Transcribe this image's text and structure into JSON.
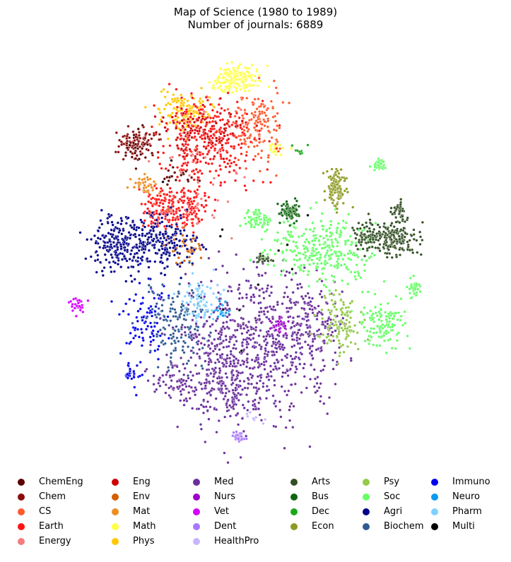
{
  "chart_data": {
    "type": "scatter",
    "title": "Map of Science (1980 to 1989)",
    "subtitle": "Number of journals: 6889",
    "axes_visible": false,
    "legend_placement": "bottom",
    "fields": [
      {
        "name": "ChemEng",
        "color": "#5c0000"
      },
      {
        "name": "Chem",
        "color": "#8b0d0d"
      },
      {
        "name": "CS",
        "color": "#ff5a2e"
      },
      {
        "name": "Earth",
        "color": "#ff1414"
      },
      {
        "name": "Energy",
        "color": "#f47d7d"
      },
      {
        "name": "Eng",
        "color": "#cc0000"
      },
      {
        "name": "Env",
        "color": "#d35f00"
      },
      {
        "name": "Mat",
        "color": "#ee8d22"
      },
      {
        "name": "Math",
        "color": "#ffff44"
      },
      {
        "name": "Phys",
        "color": "#ffc800"
      },
      {
        "name": "Med",
        "color": "#6a2f9b"
      },
      {
        "name": "Nurs",
        "color": "#9d00c8"
      },
      {
        "name": "Vet",
        "color": "#d400ff"
      },
      {
        "name": "Dent",
        "color": "#aa77ff"
      },
      {
        "name": "HealthPro",
        "color": "#c9b5ff"
      },
      {
        "name": "Arts",
        "color": "#334f25"
      },
      {
        "name": "Bus",
        "color": "#116611"
      },
      {
        "name": "Dec",
        "color": "#1aa81a"
      },
      {
        "name": "Econ",
        "color": "#8e9a22"
      },
      {
        "name": "Psy",
        "color": "#94c94a"
      },
      {
        "name": "Soc",
        "color": "#66ff66"
      },
      {
        "name": "Agri",
        "color": "#000088"
      },
      {
        "name": "Biochem",
        "color": "#2f5a92"
      },
      {
        "name": "Immuno",
        "color": "#0000ee"
      },
      {
        "name": "Neuro",
        "color": "#0a9af0"
      },
      {
        "name": "Pharm",
        "color": "#7fd1ff"
      },
      {
        "name": "Multi",
        "color": "#000000"
      }
    ],
    "legend_columns": [
      [
        "ChemEng",
        "Chem",
        "CS",
        "Earth",
        "Energy"
      ],
      [
        "Eng",
        "Env",
        "Mat",
        "Math",
        "Phys"
      ],
      [
        "Med",
        "Nurs",
        "Vet",
        "Dent",
        "HealthPro"
      ],
      [
        "Arts",
        "Bus",
        "Dec",
        "Econ"
      ],
      [
        "Psy",
        "Soc",
        "Agri",
        "Biochem"
      ],
      [
        "Immuno",
        "Neuro",
        "Pharm",
        "Multi"
      ]
    ],
    "xlim": [
      0,
      100
    ],
    "ylim": [
      0,
      100
    ],
    "clusters": [
      {
        "field": "Math",
        "x": 43,
        "y": 94,
        "sx": 3.2,
        "sy": 2.2,
        "n": 180
      },
      {
        "field": "Math",
        "x": 56,
        "y": 76,
        "sx": 1.5,
        "sy": 0.8,
        "n": 25
      },
      {
        "field": "Phys",
        "x": 28,
        "y": 86,
        "sx": 4.5,
        "sy": 3,
        "n": 150
      },
      {
        "field": "CS",
        "x": 49,
        "y": 82,
        "sx": 4,
        "sy": 5,
        "n": 150
      },
      {
        "field": "Earth",
        "x": 34,
        "y": 78,
        "sx": 8,
        "sy": 6.5,
        "n": 320
      },
      {
        "field": "Earth",
        "x": 21,
        "y": 61,
        "sx": 3.5,
        "sy": 3.5,
        "n": 160
      },
      {
        "field": "Earth",
        "x": 29,
        "y": 61,
        "sx": 2.5,
        "sy": 3,
        "n": 90
      },
      {
        "field": "Eng",
        "x": 33,
        "y": 81,
        "sx": 7,
        "sy": 4.5,
        "n": 110
      },
      {
        "field": "Chem",
        "x": 13,
        "y": 78,
        "sx": 3.2,
        "sy": 2.2,
        "n": 90
      },
      {
        "field": "ChemEng",
        "x": 13,
        "y": 76,
        "sx": 2.5,
        "sy": 2.5,
        "n": 25
      },
      {
        "field": "ChemEng",
        "x": 25,
        "y": 69,
        "sx": 2.5,
        "sy": 1.5,
        "n": 20
      },
      {
        "field": "Mat",
        "x": 15,
        "y": 67,
        "sx": 2.2,
        "sy": 1.6,
        "n": 40
      },
      {
        "field": "Env",
        "x": 27,
        "y": 51,
        "sx": 3,
        "sy": 3,
        "n": 45
      },
      {
        "field": "Energy",
        "x": 32,
        "y": 69,
        "sx": 8,
        "sy": 12,
        "n": 30
      },
      {
        "field": "Agri",
        "x": 6,
        "y": 52,
        "sx": 4,
        "sy": 4.5,
        "n": 180
      },
      {
        "field": "Agri",
        "x": 19,
        "y": 52,
        "sx": 6,
        "sy": 4,
        "n": 230
      },
      {
        "field": "Vet",
        "x": -6,
        "y": 36,
        "sx": 1.2,
        "sy": 1.2,
        "n": 30
      },
      {
        "field": "Immuno",
        "x": 16,
        "y": 32,
        "sx": 4,
        "sy": 7,
        "n": 90
      },
      {
        "field": "Immuno",
        "x": 11,
        "y": 18,
        "sx": 1.5,
        "sy": 1.5,
        "n": 30
      },
      {
        "field": "Biochem",
        "x": 25,
        "y": 31,
        "sx": 5,
        "sy": 6,
        "n": 160
      },
      {
        "field": "Pharm",
        "x": 33,
        "y": 37,
        "sx": 3,
        "sy": 3.5,
        "n": 70
      },
      {
        "field": "Neuro",
        "x": 39,
        "y": 35,
        "sx": 1.3,
        "sy": 1.3,
        "n": 35
      },
      {
        "field": "Med",
        "x": 47,
        "y": 24,
        "sx": 11,
        "sy": 11,
        "n": 700
      },
      {
        "field": "Med",
        "x": 25,
        "y": 16,
        "sx": 4,
        "sy": 3,
        "n": 70
      },
      {
        "field": "Med",
        "x": 66,
        "y": 30,
        "sx": 5,
        "sy": 7,
        "n": 180
      },
      {
        "field": "Med",
        "x": 40,
        "y": 13,
        "sx": 6,
        "sy": 4,
        "n": 90
      },
      {
        "field": "Nurs",
        "x": 57,
        "y": 31,
        "sx": 1.5,
        "sy": 1.5,
        "n": 30
      },
      {
        "field": "Dent",
        "x": 44,
        "y": 2,
        "sx": 0.9,
        "sy": 0.7,
        "n": 40
      },
      {
        "field": "HealthPro",
        "x": 49,
        "y": 7,
        "sx": 2,
        "sy": 1.5,
        "n": 8
      },
      {
        "field": "Soc",
        "x": 70,
        "y": 50,
        "sx": 8,
        "sy": 5,
        "n": 300
      },
      {
        "field": "Soc",
        "x": 88,
        "y": 31,
        "sx": 3.5,
        "sy": 3.5,
        "n": 120
      },
      {
        "field": "Soc",
        "x": 98,
        "y": 40,
        "sx": 1,
        "sy": 1.5,
        "n": 35
      },
      {
        "field": "Soc",
        "x": 50,
        "y": 58,
        "sx": 2,
        "sy": 1.3,
        "n": 60
      },
      {
        "field": "Soc",
        "x": 87,
        "y": 72,
        "sx": 1,
        "sy": 0.8,
        "n": 35
      },
      {
        "field": "Psy",
        "x": 75,
        "y": 31,
        "sx": 3,
        "sy": 5,
        "n": 120
      },
      {
        "field": "Arts",
        "x": 92,
        "y": 53,
        "sx": 3.5,
        "sy": 2.5,
        "n": 170
      },
      {
        "field": "Arts",
        "x": 84,
        "y": 54,
        "sx": 2.5,
        "sy": 2.5,
        "n": 80
      },
      {
        "field": "Arts",
        "x": 93,
        "y": 60,
        "sx": 1,
        "sy": 1.8,
        "n": 40
      },
      {
        "field": "Arts",
        "x": 52,
        "y": 48,
        "sx": 1.3,
        "sy": 0.8,
        "n": 30
      },
      {
        "field": "Bus",
        "x": 60,
        "y": 60,
        "sx": 1.5,
        "sy": 1.5,
        "n": 90
      },
      {
        "field": "Dec",
        "x": 63,
        "y": 76,
        "sx": 1,
        "sy": 0.8,
        "n": 10
      },
      {
        "field": "Econ",
        "x": 74,
        "y": 66,
        "sx": 1.5,
        "sy": 3,
        "n": 120
      },
      {
        "field": "Multi",
        "x": 45,
        "y": 50,
        "sx": 15,
        "sy": 18,
        "n": 12
      }
    ]
  }
}
